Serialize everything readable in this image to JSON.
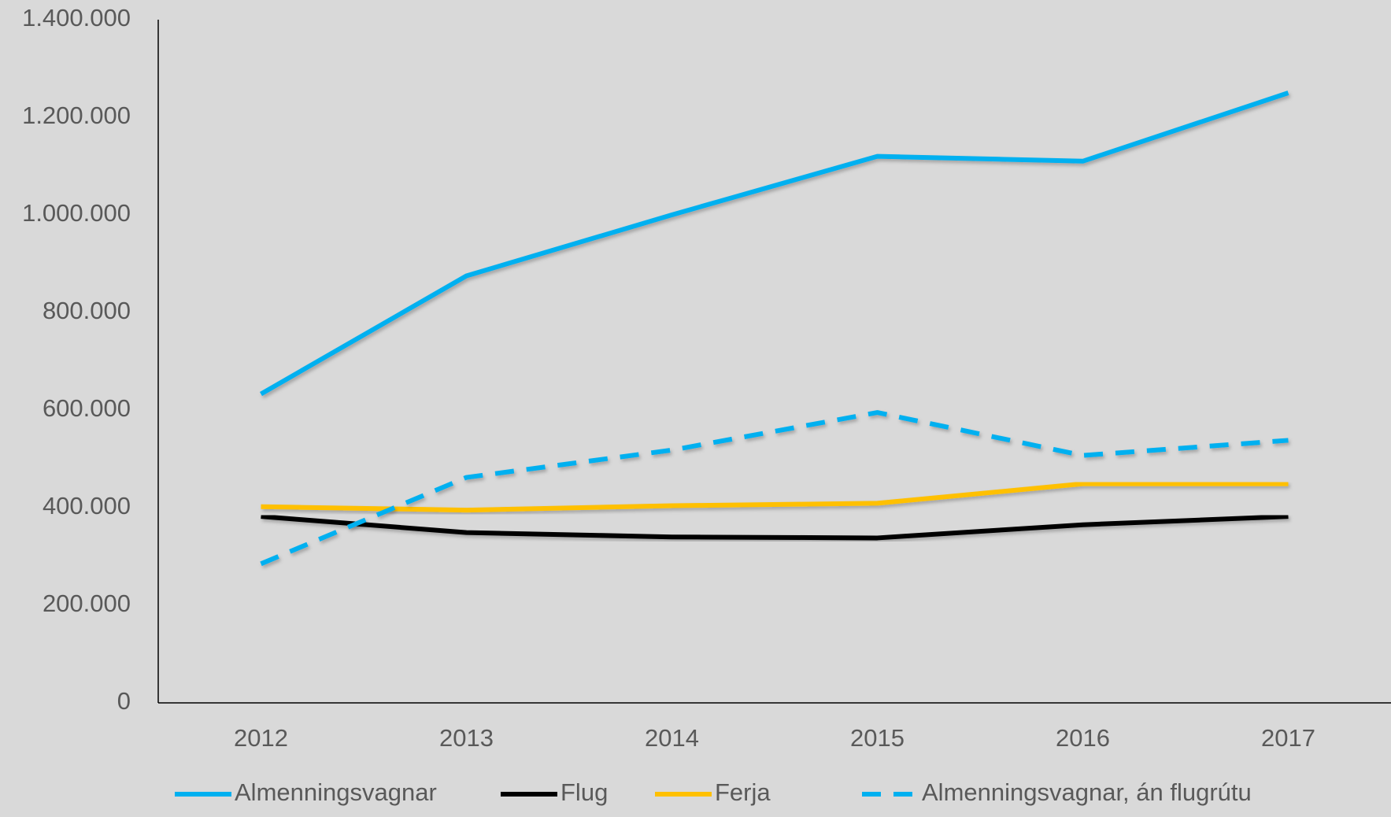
{
  "chart_data": {
    "type": "line",
    "categories": [
      "2012",
      "2013",
      "2014",
      "2015",
      "2016",
      "2017"
    ],
    "series": [
      {
        "name": "Almenningsvagnar",
        "color": "#00b0f0",
        "values": [
          633000,
          875000,
          1000000,
          1120000,
          1110000,
          1250000
        ]
      },
      {
        "name": "Flug",
        "color": "#000000",
        "values": [
          382000,
          349000,
          340000,
          338000,
          365000,
          382000
        ]
      },
      {
        "name": "Ferja",
        "color": "#ffc000",
        "values": [
          402000,
          395000,
          404000,
          409000,
          449000,
          449000
        ]
      },
      {
        "name": "Almenningsvagnar, án flugrútu",
        "color": "#00b0f0",
        "dashed": true,
        "values": [
          285000,
          462000,
          518000,
          595000,
          507000,
          538000
        ]
      }
    ],
    "ylim": [
      0,
      1400000
    ],
    "yticks": [
      0,
      {
        "value": 200000,
        "label": "200.000"
      },
      {
        "value": 400000,
        "label": "400.000"
      },
      {
        "value": 600000,
        "label": "600.000"
      },
      {
        "value": 800000,
        "label": "800.000"
      },
      {
        "value": 1000000,
        "label": "1.000.000"
      },
      {
        "value": 1200000,
        "label": "1.200.000"
      },
      {
        "value": 1400000,
        "label": "1.400.000"
      }
    ],
    "grid": false,
    "legend": "bottom"
  }
}
